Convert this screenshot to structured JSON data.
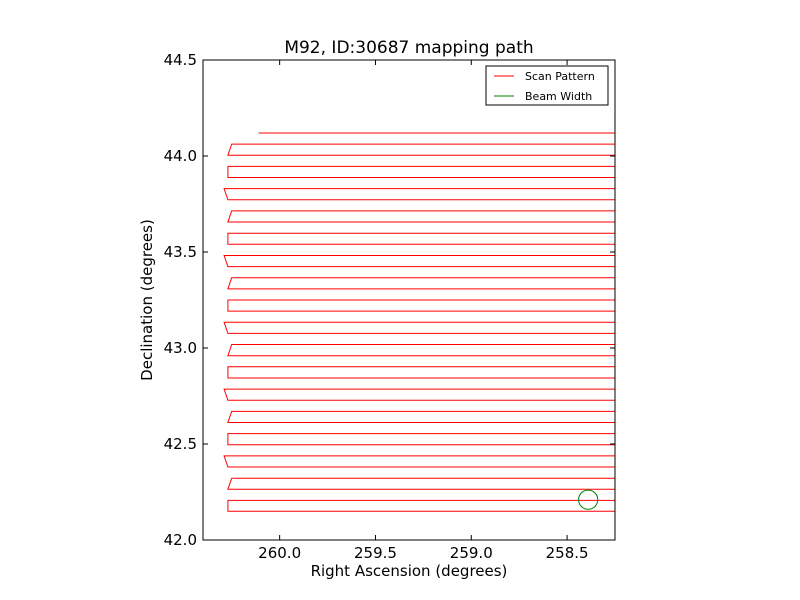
{
  "chart_data": {
    "type": "line",
    "title": "M92, ID:30687 mapping path",
    "xlabel": "Right Ascension (degrees)",
    "ylabel": "Declination (degrees)",
    "xlim": [
      260.4,
      258.25
    ],
    "ylim": [
      42.0,
      44.5
    ],
    "x_inverted": true,
    "xticks": [
      260.0,
      259.5,
      259.0,
      258.5
    ],
    "xtick_labels": [
      "260.0",
      "259.5",
      "259.0",
      "258.5"
    ],
    "yticks": [
      42.0,
      42.5,
      43.0,
      43.5,
      44.0,
      44.5
    ],
    "ytick_labels": [
      "42.0",
      "42.5",
      "43.0",
      "43.5",
      "44.0",
      "44.5"
    ],
    "grid": false,
    "legend_position": "upper right",
    "series": [
      {
        "name": "Scan Pattern",
        "color": "#ff0000",
        "pattern": "raster",
        "ra_west": 260.27,
        "ra_east": 258.13,
        "ra_start": 260.11,
        "dec_start": 44.12,
        "dec_end": 42.15,
        "dec_step": 0.058,
        "turn_offset": 0.1
      },
      {
        "name": "Beam Width",
        "color": "#008000",
        "shape": "circle",
        "center_ra": 258.39,
        "center_dec": 42.21,
        "radius_dec": 0.05
      }
    ]
  }
}
